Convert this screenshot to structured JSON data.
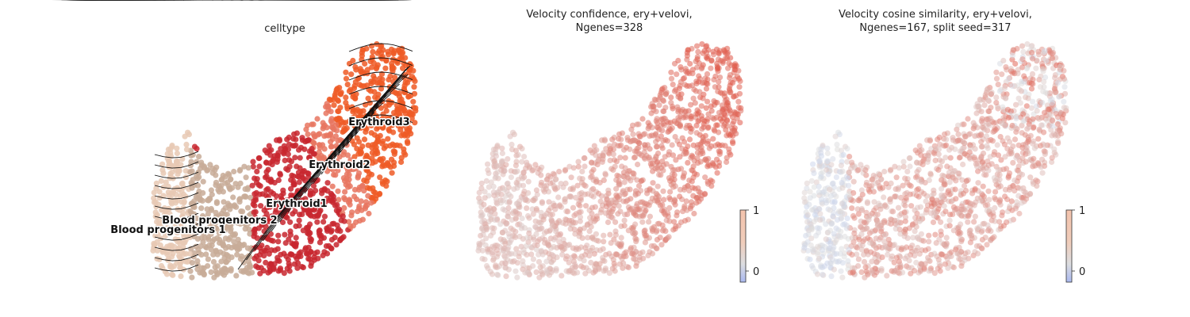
{
  "chart_data": [
    {
      "type": "scatter",
      "title": "celltype",
      "series": [
        {
          "name": "Blood progenitors 1",
          "color": "#e8c9b4"
        },
        {
          "name": "Blood progenitors 2",
          "color": "#c8ab98"
        },
        {
          "name": "Erythroid1",
          "color": "#c8272f"
        },
        {
          "name": "Erythroid2",
          "color": "#e87560"
        },
        {
          "name": "Erythroid3",
          "color": "#ee5a26"
        }
      ],
      "overlay": "velocity streamlines (black arrows)",
      "legend": "on data"
    },
    {
      "type": "scatter",
      "title_line1": "Velocity confidence, ery+velovi,",
      "title_line2": "Ngenes=328",
      "colormap": "coolwarm",
      "colorbar": {
        "ticks": [
          "0",
          "1"
        ],
        "range": [
          -0.3,
          1.0
        ]
      }
    },
    {
      "type": "scatter",
      "title_line1": "Velocity cosine similarity, ery+velovi,",
      "title_line2": "Ngenes=167, split seed=317",
      "colormap": "coolwarm",
      "colorbar": {
        "ticks": [
          "0",
          "1"
        ],
        "range": [
          -0.3,
          1.0
        ]
      }
    }
  ]
}
